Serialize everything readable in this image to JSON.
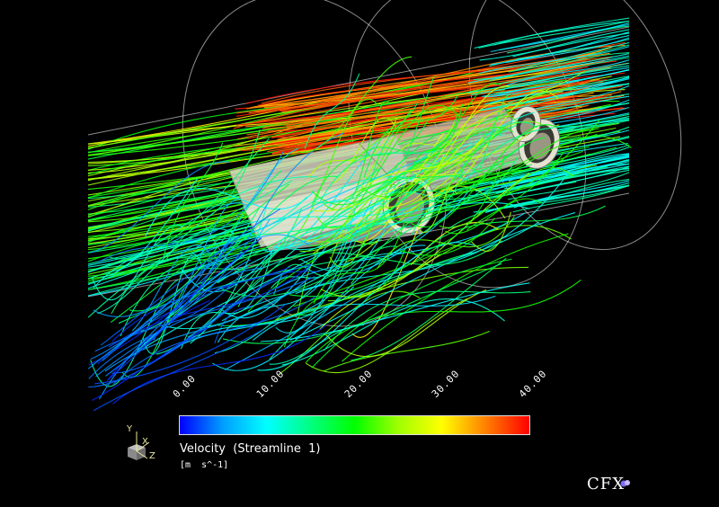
{
  "colors": {
    "background": "#000000",
    "colormap": [
      "#0000ff",
      "#00a0ff",
      "#00ffff",
      "#00ff80",
      "#00ff00",
      "#a0ff00",
      "#ffff00",
      "#ff8000",
      "#ff0000"
    ],
    "geometry": "#d8d4c0",
    "wireframe": "#ffffff"
  },
  "legend": {
    "title": "Velocity  (Streamline  1)",
    "units": "[m  s^-1]",
    "ticks": [
      "0.00",
      "10.00",
      "20.00",
      "30.00",
      "40.00"
    ]
  },
  "axis_triad": {
    "x_label": "X",
    "y_label": "Y",
    "z_label": "Z"
  },
  "brand": {
    "text": "CFX",
    "icon": "cfx-logo-icon"
  }
}
